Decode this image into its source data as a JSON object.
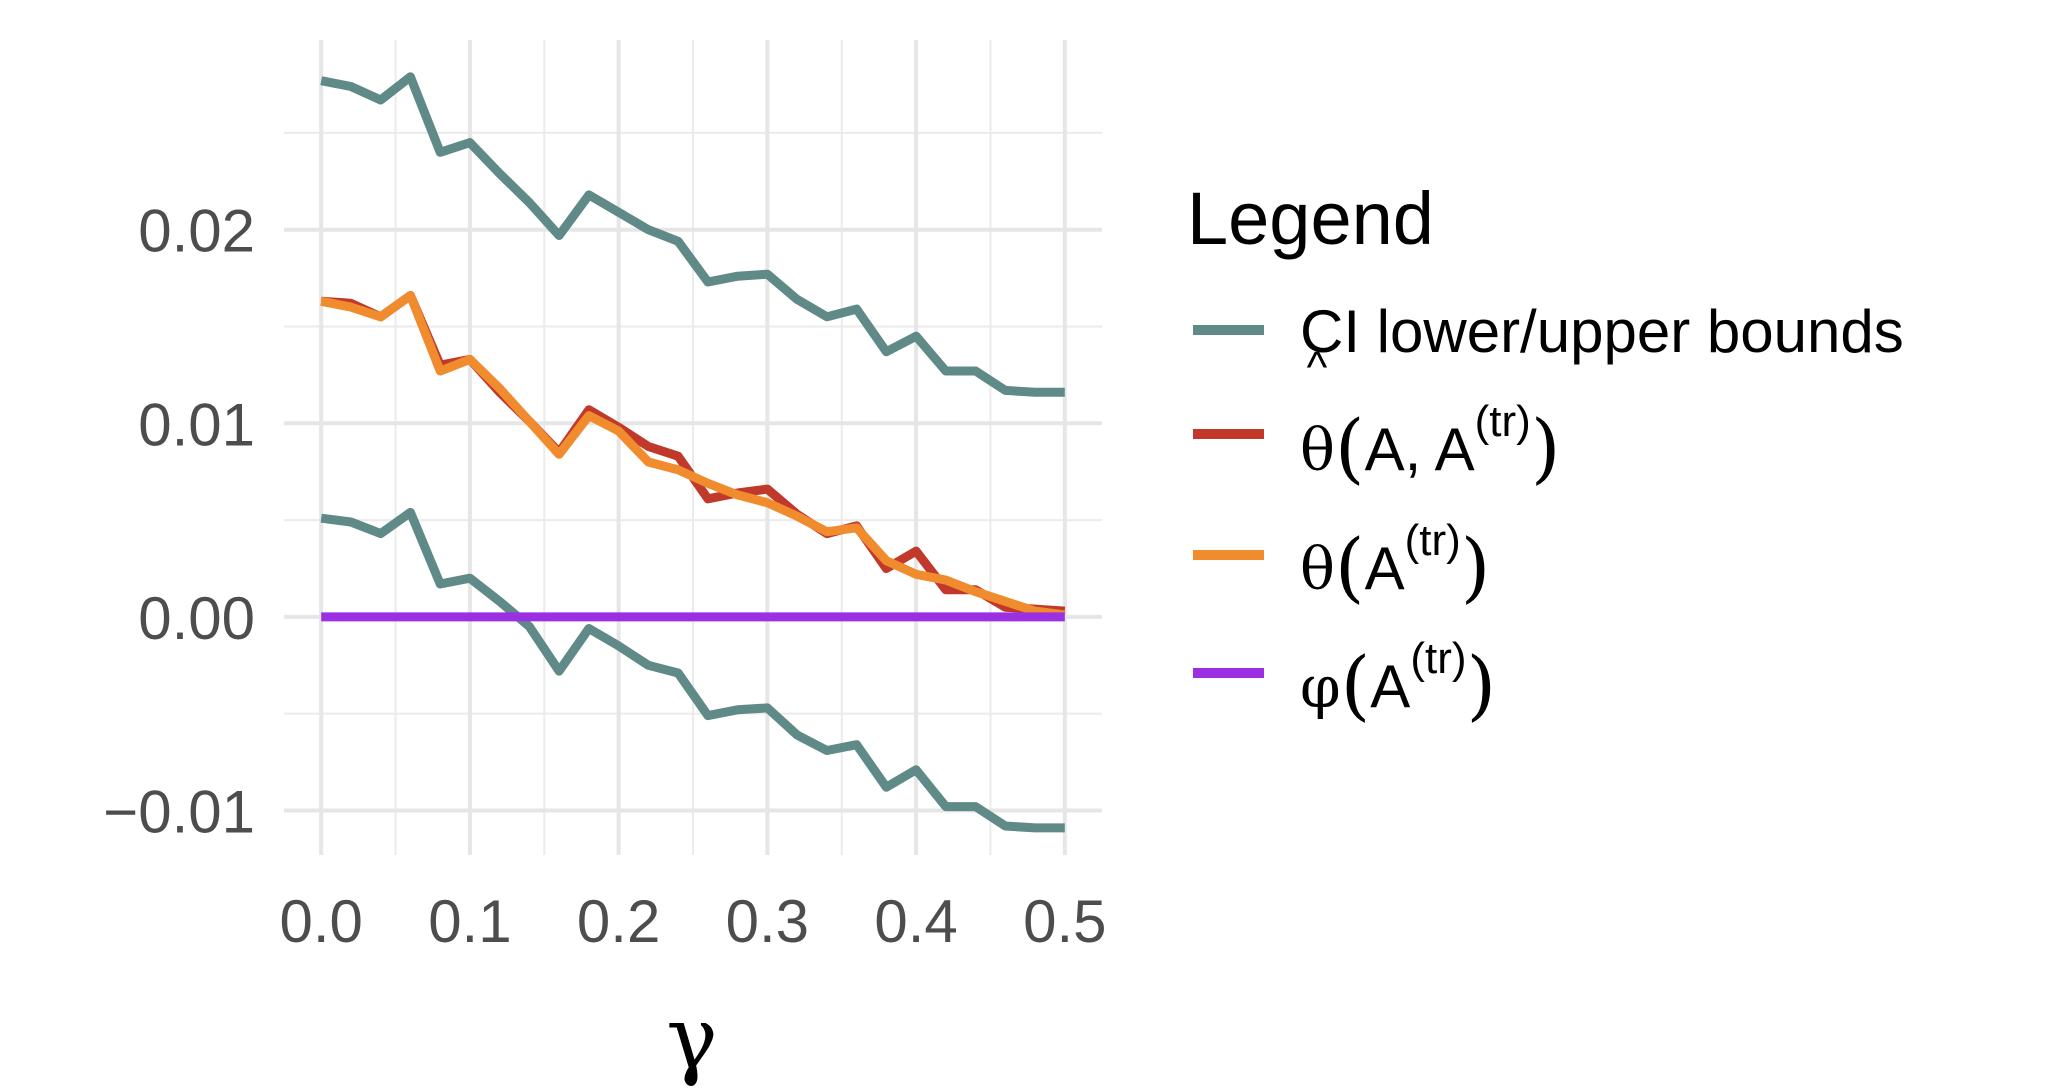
{
  "chart_data": {
    "type": "line",
    "xlabel": "γ",
    "ylabel": "",
    "xlim": [
      -0.025,
      0.525
    ],
    "ylim": [
      -0.0123,
      0.0298
    ],
    "x_ticks": [
      0.0,
      0.1,
      0.2,
      0.3,
      0.4,
      0.5
    ],
    "x_tick_labels": [
      "0.0",
      "0.1",
      "0.2",
      "0.3",
      "0.4",
      "0.5"
    ],
    "y_ticks": [
      -0.01,
      0.0,
      0.01,
      0.02
    ],
    "y_tick_labels": [
      "−0.01",
      "0.00",
      "0.01",
      "0.02"
    ],
    "grid": true,
    "legend": {
      "title": "Legend",
      "position": "right",
      "items": [
        {
          "key": "ci",
          "label": "CI lower/upper bounds",
          "color": "#5F8A87"
        },
        {
          "key": "theta_hat",
          "label": "θ̂(A, A(tr))",
          "color": "#C0392B"
        },
        {
          "key": "theta",
          "label": "θ(A(tr))",
          "color": "#F08C2E"
        },
        {
          "key": "phi",
          "label": "φ(A(tr))",
          "color": "#9B30E3"
        }
      ]
    },
    "x": [
      0.0,
      0.02,
      0.04,
      0.06,
      0.08,
      0.1,
      0.12,
      0.14,
      0.16,
      0.18,
      0.2,
      0.22,
      0.24,
      0.26,
      0.28,
      0.3,
      0.32,
      0.34,
      0.36,
      0.38,
      0.4,
      0.42,
      0.44,
      0.46,
      0.48,
      0.5
    ],
    "series": [
      {
        "name": "CI lower/upper bounds",
        "color": "#5F8A87",
        "values": [
          0.0277,
          0.0274,
          0.0267,
          0.0279,
          0.024,
          0.0245,
          0.0229,
          0.0214,
          0.0197,
          0.0218,
          0.0209,
          0.02,
          0.0194,
          0.0173,
          0.0176,
          0.0177,
          0.0164,
          0.0155,
          0.0159,
          0.0137,
          0.0145,
          0.0127,
          0.0127,
          0.0117,
          0.0116,
          0.0116
        ]
      },
      {
        "name": "CI lower/upper bounds",
        "color": "#5F8A87",
        "values": [
          0.0051,
          0.0049,
          0.0043,
          0.0054,
          0.0017,
          0.002,
          0.0008,
          -0.0005,
          -0.0028,
          -0.0006,
          -0.0015,
          -0.0025,
          -0.0029,
          -0.0051,
          -0.0048,
          -0.0047,
          -0.0061,
          -0.0069,
          -0.0066,
          -0.0088,
          -0.0079,
          -0.0098,
          -0.0098,
          -0.0108,
          -0.0109,
          -0.0109
        ]
      },
      {
        "name": "θ̂(A, A(tr))",
        "color": "#C0392B",
        "values": [
          0.0163,
          0.0162,
          0.0155,
          0.0166,
          0.013,
          0.0133,
          0.0116,
          0.0101,
          0.0085,
          0.0107,
          0.0098,
          0.0088,
          0.0083,
          0.0061,
          0.0064,
          0.0066,
          0.0053,
          0.0043,
          0.0047,
          0.0025,
          0.0034,
          0.0014,
          0.0014,
          0.0005,
          0.0004,
          0.0003
        ]
      },
      {
        "name": "θ(A(tr))",
        "color": "#F08C2E",
        "values": [
          0.0163,
          0.016,
          0.0155,
          0.0166,
          0.0127,
          0.0133,
          0.0118,
          0.0101,
          0.0084,
          0.0104,
          0.0096,
          0.008,
          0.0076,
          0.0069,
          0.0063,
          0.0059,
          0.0052,
          0.0044,
          0.0046,
          0.0029,
          0.0022,
          0.0019,
          0.0013,
          0.0008,
          0.0003,
          0.0001
        ]
      },
      {
        "name": "φ(A(tr))",
        "color": "#9B30E3",
        "values": [
          0.0,
          0.0,
          0.0,
          0.0,
          0.0,
          0.0,
          0.0,
          0.0,
          0.0,
          0.0,
          0.0,
          0.0,
          0.0,
          0.0,
          0.0,
          0.0,
          0.0,
          0.0,
          0.0,
          0.0,
          0.0,
          0.0,
          0.0,
          0.0,
          0.0,
          0.0
        ]
      }
    ]
  }
}
